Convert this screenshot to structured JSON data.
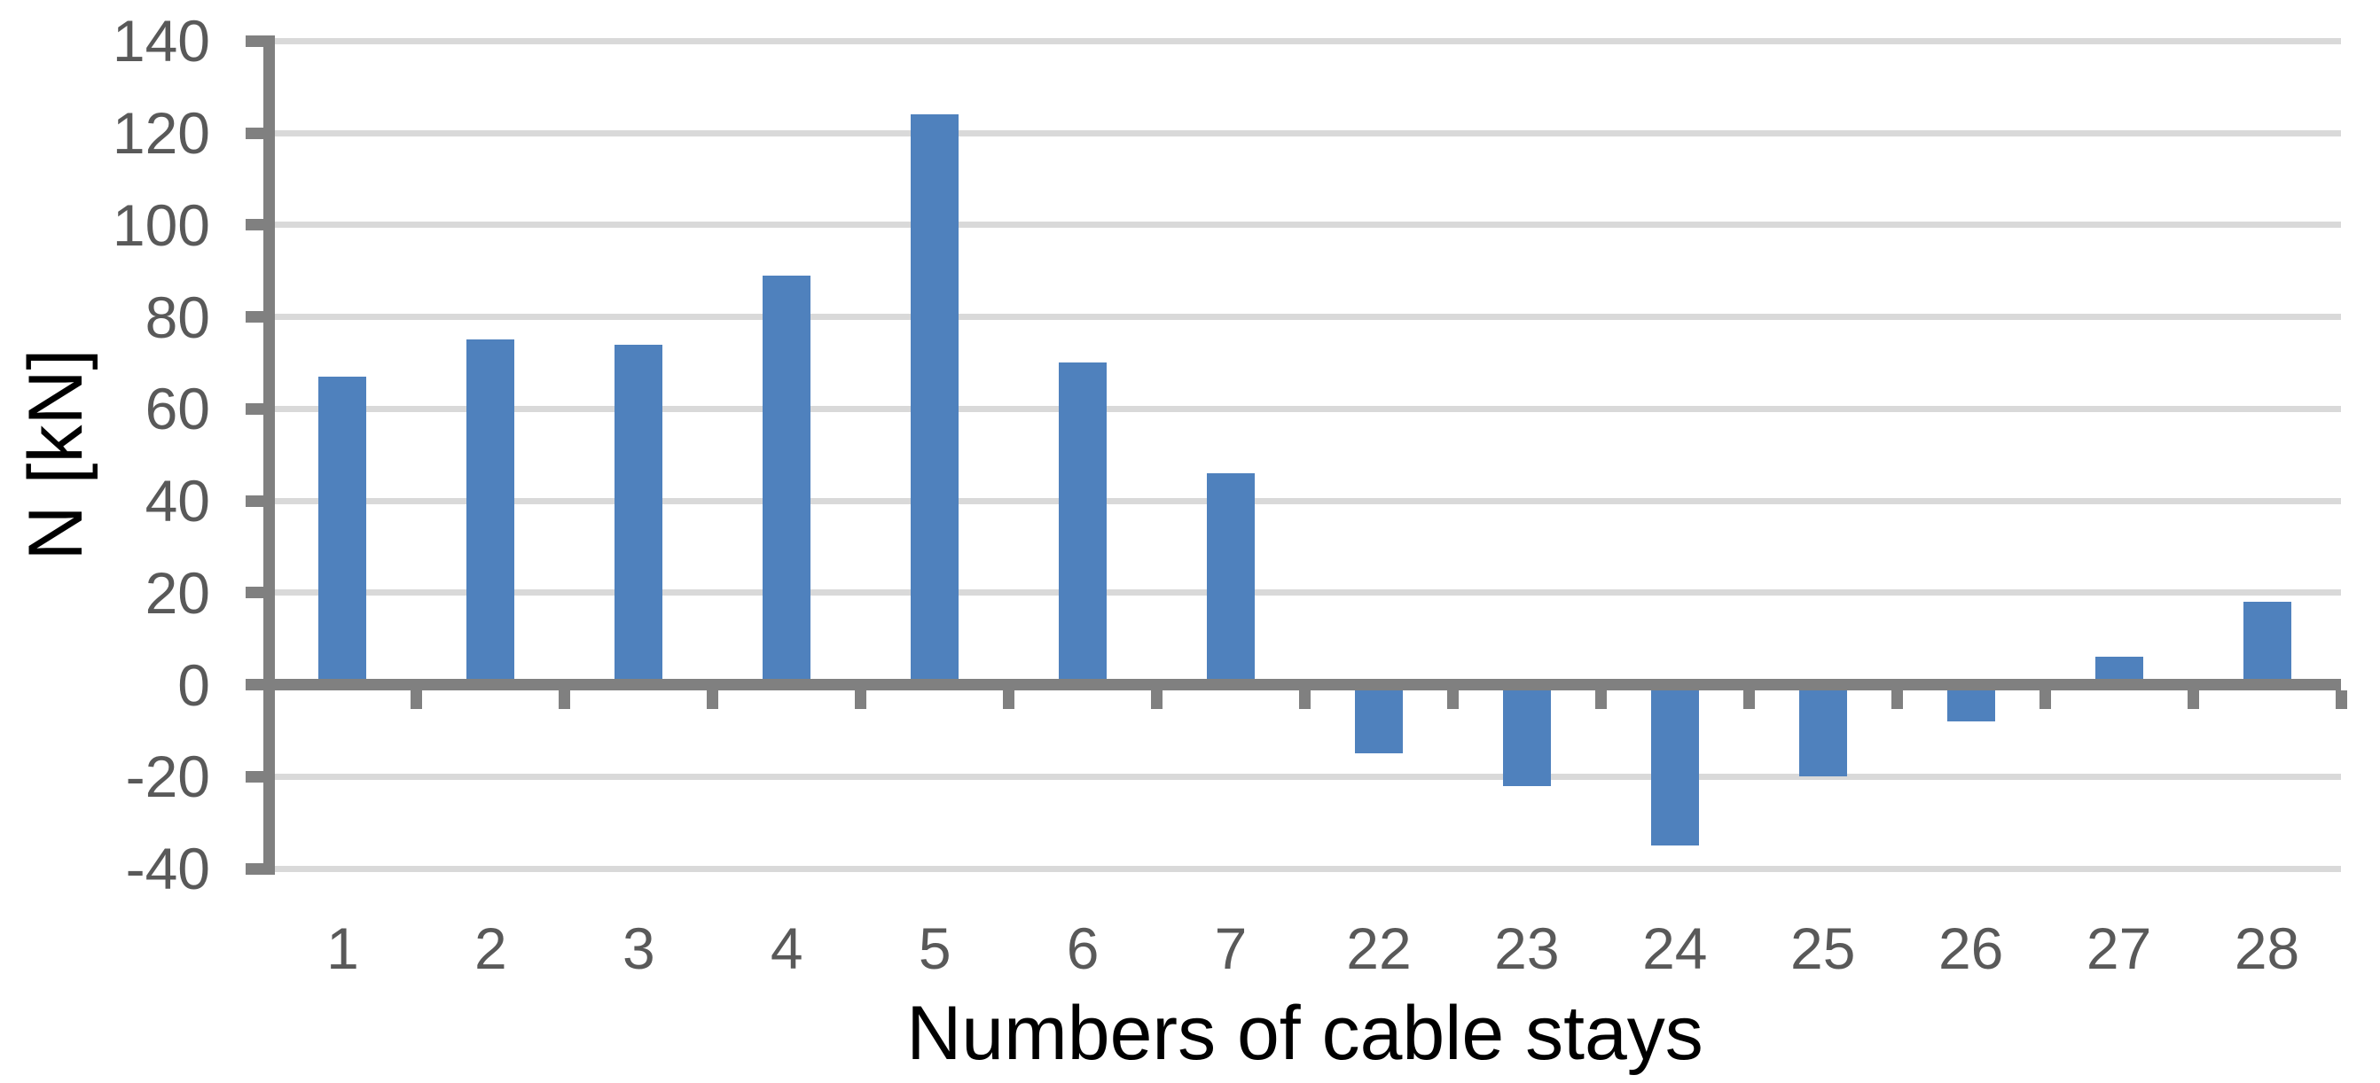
{
  "chart_data": {
    "type": "bar",
    "title": "",
    "xlabel": "Numbers of cable stays",
    "ylabel": "N [kN]",
    "categories": [
      "1",
      "2",
      "3",
      "4",
      "5",
      "6",
      "7",
      "22",
      "23",
      "24",
      "25",
      "26",
      "27",
      "28"
    ],
    "series": [
      {
        "name": "N",
        "values": [
          67,
          75,
          74,
          89,
          124,
          70,
          46,
          -15,
          -22,
          -35,
          -20,
          -8,
          6,
          18
        ]
      }
    ],
    "ylim": [
      -40,
      140
    ],
    "ytick_step": 20,
    "yticks": [
      "140",
      "120",
      "100",
      "80",
      "60",
      "40",
      "20",
      "0",
      "-20",
      "-40"
    ],
    "grid": "horizontal-only",
    "legend_position": "none",
    "colors": {
      "bar_fill": "#4F81BD",
      "axis_line": "#808080",
      "zero_line": "#808080",
      "gridline": "#D9D9D9",
      "tick_label": "#595959",
      "axis_title": "#000000",
      "background": "#FFFFFF"
    }
  }
}
